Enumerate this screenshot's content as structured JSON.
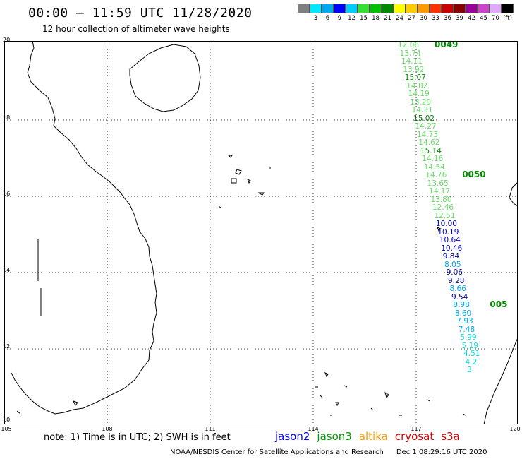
{
  "header": {
    "title": "00:00 – 11:59 UTC 11/28/2020",
    "subtitle": "12 hour collection of altimeter wave heights"
  },
  "legend": {
    "colors": [
      "#808080",
      "#00e8ff",
      "#00a8f0",
      "#0000ff",
      "#00ccff",
      "#33e033",
      "#00c000",
      "#008800",
      "#ffff00",
      "#ffcc00",
      "#ff9900",
      "#ff3300",
      "#cc0000",
      "#880000",
      "#990099",
      "#cc44cc",
      "#ddaaff",
      "#000000"
    ],
    "labels": [
      "3",
      "6",
      "9",
      "12",
      "15",
      "18",
      "21",
      "24",
      "27",
      "30",
      "33",
      "36",
      "39",
      "42",
      "45",
      "70",
      "(ft)"
    ]
  },
  "axes": {
    "lat_labels": [
      "20",
      "18",
      "16",
      "14",
      "12",
      "10"
    ],
    "lon_labels": [
      "105",
      "108",
      "111",
      "114",
      "117",
      "120"
    ]
  },
  "tracks": [
    {
      "time": "0049",
      "time_color": "#008800",
      "readings": [
        {
          "v": "12.06",
          "c": "#66dd66"
        },
        {
          "v": "13.74",
          "c": "#66dd66"
        },
        {
          "v": "14.11",
          "c": "#66dd66"
        },
        {
          "v": "13.92",
          "c": "#66dd66"
        },
        {
          "v": "15.07",
          "c": "#008800"
        },
        {
          "v": "14.82",
          "c": "#66dd66"
        },
        {
          "v": "14.19",
          "c": "#66dd66"
        },
        {
          "v": "13.29",
          "c": "#66dd66"
        },
        {
          "v": "14.31",
          "c": "#66dd66"
        },
        {
          "v": "15.02",
          "c": "#008800"
        },
        {
          "v": "14.27",
          "c": "#66dd66"
        },
        {
          "v": "14.73",
          "c": "#66dd66"
        },
        {
          "v": "14.62",
          "c": "#66dd66"
        },
        {
          "v": "15.14",
          "c": "#008800"
        },
        {
          "v": "14.16",
          "c": "#66dd66"
        },
        {
          "v": "14.54",
          "c": "#66dd66"
        }
      ]
    },
    {
      "time": "0050",
      "time_color": "#008800",
      "readings": [
        {
          "v": "14.76",
          "c": "#66dd66"
        },
        {
          "v": "13.65",
          "c": "#66dd66"
        },
        {
          "v": "14.17",
          "c": "#66dd66"
        },
        {
          "v": "13.80",
          "c": "#66dd66"
        },
        {
          "v": "12.46",
          "c": "#66dd66"
        },
        {
          "v": "12.51",
          "c": "#66dd66"
        },
        {
          "v": "10.00",
          "c": "#0000cc"
        },
        {
          "v": "10.19",
          "c": "#0000cc"
        },
        {
          "v": "10.64",
          "c": "#0000cc"
        },
        {
          "v": "10.46",
          "c": "#0000cc"
        },
        {
          "v": "9.84",
          "c": "#000088"
        },
        {
          "v": "8.05",
          "c": "#00aaee"
        },
        {
          "v": "9.06",
          "c": "#000088"
        },
        {
          "v": "9.28",
          "c": "#000088"
        },
        {
          "v": "8.66",
          "c": "#00aaee"
        },
        {
          "v": "9.54",
          "c": "#000088"
        }
      ]
    },
    {
      "time": "005",
      "time_color": "#008800",
      "readings": [
        {
          "v": "8.98",
          "c": "#00aaee"
        },
        {
          "v": "8.60",
          "c": "#00aaee"
        },
        {
          "v": "7.93",
          "c": "#00aaee"
        },
        {
          "v": "7.48",
          "c": "#00aaee"
        },
        {
          "v": "5.99",
          "c": "#00dddd"
        },
        {
          "v": "5.19",
          "c": "#00dddd"
        },
        {
          "v": "4.51",
          "c": "#00dddd"
        },
        {
          "v": "4.2",
          "c": "#00dddd"
        },
        {
          "v": "3",
          "c": "#00dddd"
        }
      ]
    }
  ],
  "footer": {
    "note": "note:  1) Time is in UTC;  2) SWH is in feet",
    "satellites": [
      {
        "name": "jason2",
        "color": "#0000ff"
      },
      {
        "name": "jason3",
        "color": "#009900"
      },
      {
        "name": "altika",
        "color": "#ff9900"
      },
      {
        "name": "cryosat",
        "color": "#dd0000"
      },
      {
        "name": "s3a",
        "color": "#cc0000"
      }
    ],
    "credit": "NOAA/NESDIS Center for Satellite Applications and Research",
    "timestamp": "Dec  1 08:29:16 UTC 2020"
  }
}
